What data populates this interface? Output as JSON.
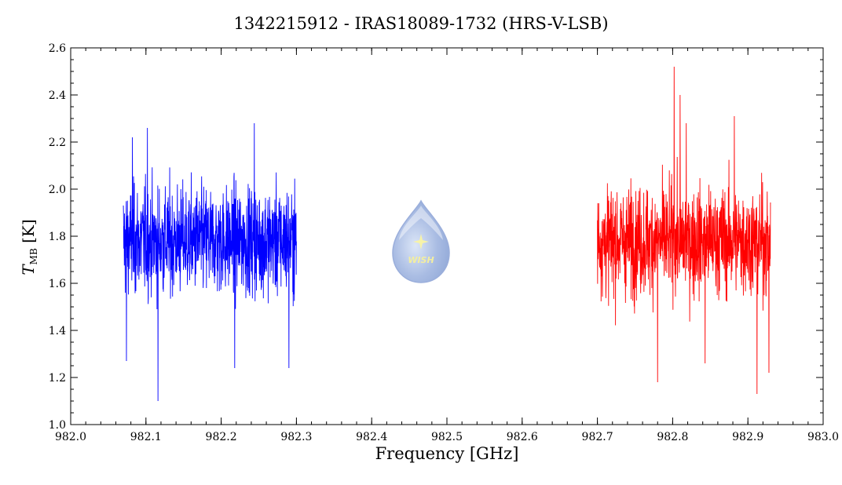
{
  "chart_data": {
    "type": "line",
    "title": "1342215912 - IRAS18089-1732 (HRS-V-LSB)",
    "xlabel": "Frequency [GHz]",
    "ylabel": {
      "symbol": "T",
      "subscript": "MB",
      "unit": "[K]"
    },
    "xlim": [
      982.0,
      983.0
    ],
    "ylim": [
      1.0,
      2.6
    ],
    "xticks": [
      "982.0",
      "982.1",
      "982.2",
      "982.3",
      "982.4",
      "982.5",
      "982.6",
      "982.7",
      "982.8",
      "982.9",
      "983.0"
    ],
    "yticks": [
      "1.0",
      "1.2",
      "1.4",
      "1.6",
      "1.8",
      "2.0",
      "2.2",
      "2.4",
      "2.6"
    ],
    "grid": false,
    "series": [
      {
        "color": "#0000ff",
        "x_range": [
          982.07,
          982.3
        ],
        "mean": 1.78,
        "spikes": [
          {
            "x": 982.116,
            "y": 1.1
          },
          {
            "x": 982.074,
            "y": 1.27
          },
          {
            "x": 982.244,
            "y": 2.28
          },
          {
            "x": 982.102,
            "y": 2.26
          },
          {
            "x": 982.218,
            "y": 1.24
          },
          {
            "x": 982.29,
            "y": 1.24
          },
          {
            "x": 982.082,
            "y": 2.22
          }
        ]
      },
      {
        "color": "#ff0000",
        "x_range": [
          982.7,
          982.93
        ],
        "mean": 1.78,
        "spikes": [
          {
            "x": 982.802,
            "y": 2.52
          },
          {
            "x": 982.81,
            "y": 2.4
          },
          {
            "x": 982.78,
            "y": 1.18
          },
          {
            "x": 982.912,
            "y": 1.13
          },
          {
            "x": 982.928,
            "y": 1.22
          },
          {
            "x": 982.882,
            "y": 2.31
          },
          {
            "x": 982.843,
            "y": 1.26
          },
          {
            "x": 982.818,
            "y": 2.28
          }
        ]
      }
    ]
  },
  "logo": {
    "text": "WISH",
    "color": "#8fa8d8"
  }
}
